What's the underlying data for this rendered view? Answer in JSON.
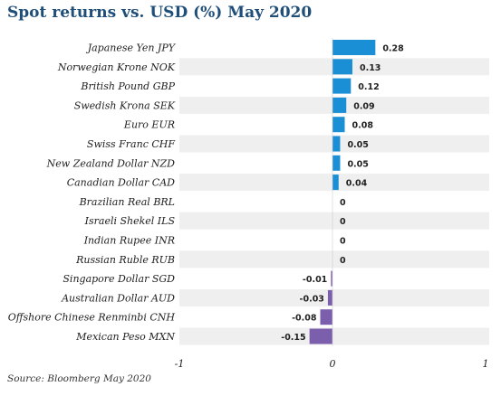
{
  "chart_data": {
    "type": "bar",
    "orientation": "horizontal",
    "title": "Spot returns vs. USD (%)  May 2020",
    "categories": [
      "Japanese Yen JPY",
      "Norwegian Krone NOK",
      "British Pound GBP",
      "Swedish Krona SEK",
      "Euro EUR",
      "Swiss Franc CHF",
      "New Zealand Dollar NZD",
      "Canadian Dollar CAD",
      "Brazilian Real BRL",
      "Israeli Shekel ILS",
      "Indian Rupee INR",
      "Russian Ruble RUB",
      "Singapore Dollar SGD",
      "Australian Dollar AUD",
      "Offshore Chinese Renminbi CNH",
      "Mexican Peso MXN"
    ],
    "values": [
      0.28,
      0.13,
      0.12,
      0.09,
      0.08,
      0.05,
      0.05,
      0.04,
      0,
      0,
      0,
      0,
      -0.01,
      -0.03,
      -0.08,
      -0.15
    ],
    "value_labels": [
      "0.28",
      "0.13",
      "0.12",
      "0.09",
      "0.08",
      "0.05",
      "0.05",
      "0.04",
      "0",
      "0",
      "0",
      "0",
      "-0.01",
      "-0.03",
      "-0.08",
      "-0.15"
    ],
    "xlim": [
      -1,
      1
    ],
    "xticks": [
      -1,
      0,
      1
    ],
    "xtick_labels": [
      "-1",
      "0",
      "1"
    ],
    "colors": {
      "positive": "#1a8fd6",
      "negative": "#7b5fad",
      "band": "#efefef"
    },
    "grid": false,
    "legend": "none"
  },
  "source": "Source: Bloomberg May 2020"
}
